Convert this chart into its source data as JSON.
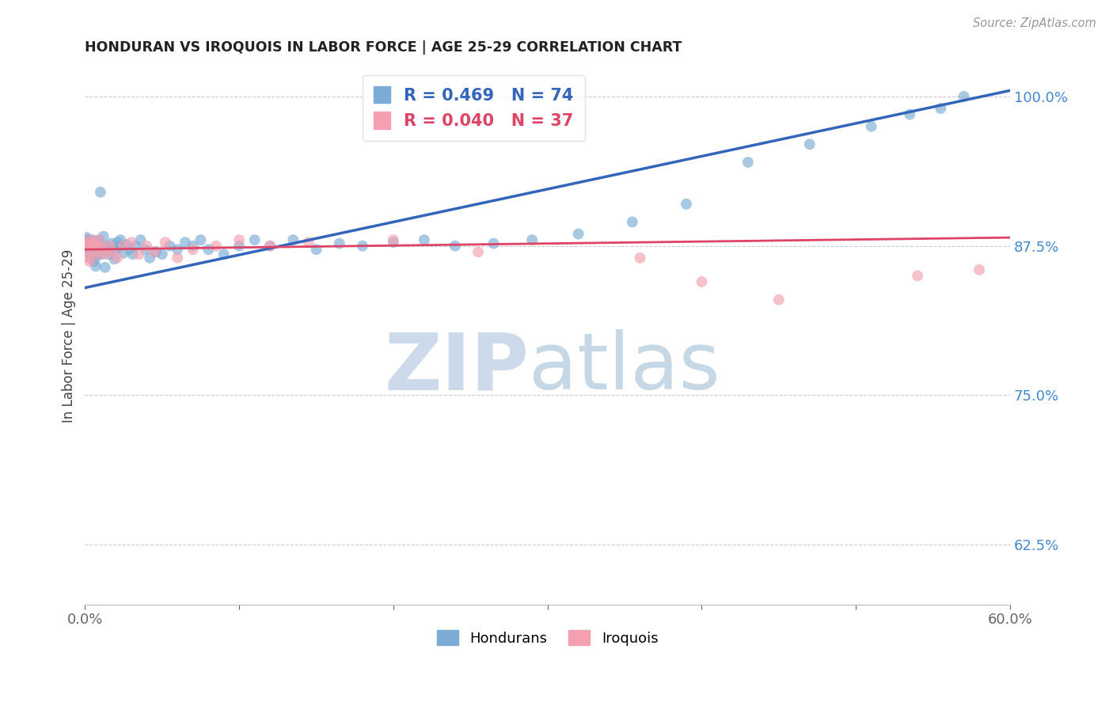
{
  "title": "HONDURAN VS IROQUOIS IN LABOR FORCE | AGE 25-29 CORRELATION CHART",
  "source_text": "Source: ZipAtlas.com",
  "ylabel": "In Labor Force | Age 25-29",
  "xlim": [
    0.0,
    0.6
  ],
  "ylim": [
    0.575,
    1.025
  ],
  "xtick_vals": [
    0.0,
    0.1,
    0.2,
    0.3,
    0.4,
    0.5,
    0.6
  ],
  "xtick_labels": [
    "0.0%",
    "",
    "",
    "",
    "",
    "",
    "60.0%"
  ],
  "ytick_vals": [
    0.625,
    0.75,
    0.875,
    1.0
  ],
  "ytick_labels": [
    "62.5%",
    "75.0%",
    "87.5%",
    "100.0%"
  ],
  "legend_blue_label": "R = 0.469   N = 74",
  "legend_pink_label": "R = 0.040   N = 37",
  "legend_blue_scatter_label": "Hondurans",
  "legend_pink_scatter_label": "Iroquois",
  "blue_color": "#7aacd6",
  "pink_color": "#f4a0b0",
  "line_blue_color": "#3366bb",
  "line_pink_color": "#dd4466",
  "honduran_x": [
    0.001,
    0.001,
    0.001,
    0.001,
    0.002,
    0.002,
    0.002,
    0.003,
    0.003,
    0.003,
    0.004,
    0.004,
    0.005,
    0.005,
    0.006,
    0.006,
    0.007,
    0.007,
    0.008,
    0.008,
    0.009,
    0.01,
    0.01,
    0.011,
    0.012,
    0.013,
    0.014,
    0.015,
    0.016,
    0.017,
    0.018,
    0.019,
    0.02,
    0.021,
    0.022,
    0.023,
    0.025,
    0.027,
    0.029,
    0.031,
    0.033,
    0.036,
    0.039,
    0.042,
    0.046,
    0.05,
    0.055,
    0.06,
    0.065,
    0.07,
    0.075,
    0.08,
    0.09,
    0.1,
    0.11,
    0.12,
    0.135,
    0.15,
    0.165,
    0.18,
    0.2,
    0.22,
    0.24,
    0.265,
    0.29,
    0.32,
    0.355,
    0.39,
    0.43,
    0.47,
    0.51,
    0.535,
    0.555,
    0.57
  ],
  "honduran_y": [
    0.875,
    0.878,
    0.882,
    0.87,
    0.876,
    0.88,
    0.872,
    0.874,
    0.869,
    0.878,
    0.865,
    0.871,
    0.88,
    0.868,
    0.877,
    0.862,
    0.875,
    0.858,
    0.873,
    0.867,
    0.88,
    0.875,
    0.92,
    0.868,
    0.883,
    0.857,
    0.875,
    0.872,
    0.868,
    0.877,
    0.871,
    0.864,
    0.872,
    0.878,
    0.875,
    0.88,
    0.869,
    0.876,
    0.872,
    0.868,
    0.875,
    0.88,
    0.872,
    0.865,
    0.87,
    0.868,
    0.875,
    0.872,
    0.878,
    0.875,
    0.88,
    0.872,
    0.868,
    0.875,
    0.88,
    0.875,
    0.88,
    0.872,
    0.877,
    0.875,
    0.878,
    0.88,
    0.875,
    0.877,
    0.88,
    0.885,
    0.895,
    0.91,
    0.945,
    0.96,
    0.975,
    0.985,
    0.99,
    1.0
  ],
  "iroquois_x": [
    0.001,
    0.001,
    0.002,
    0.002,
    0.003,
    0.003,
    0.004,
    0.005,
    0.006,
    0.007,
    0.008,
    0.009,
    0.01,
    0.012,
    0.014,
    0.016,
    0.018,
    0.021,
    0.025,
    0.03,
    0.035,
    0.04,
    0.045,
    0.052,
    0.06,
    0.07,
    0.085,
    0.1,
    0.12,
    0.145,
    0.2,
    0.255,
    0.36,
    0.4,
    0.45,
    0.54,
    0.58
  ],
  "iroquois_y": [
    0.878,
    0.87,
    0.875,
    0.865,
    0.875,
    0.862,
    0.88,
    0.878,
    0.87,
    0.875,
    0.868,
    0.88,
    0.875,
    0.872,
    0.868,
    0.875,
    0.87,
    0.865,
    0.875,
    0.878,
    0.868,
    0.875,
    0.87,
    0.878,
    0.865,
    0.872,
    0.875,
    0.88,
    0.875,
    0.878,
    0.88,
    0.87,
    0.865,
    0.845,
    0.83,
    0.85,
    0.855
  ],
  "blue_line_x0": 0.0,
  "blue_line_y0": 0.84,
  "blue_line_x1": 0.6,
  "blue_line_y1": 1.005,
  "pink_line_x0": 0.0,
  "pink_line_y0": 0.872,
  "pink_line_x1": 0.6,
  "pink_line_y1": 0.882
}
